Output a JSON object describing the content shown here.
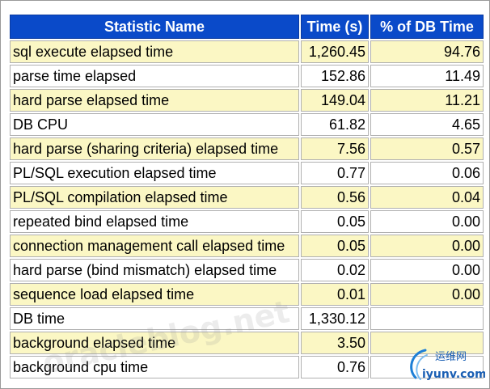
{
  "table": {
    "headers": [
      "Statistic Name",
      "Time (s)",
      "% of DB Time"
    ],
    "rows": [
      {
        "name": "sql execute elapsed time",
        "time": "1,260.45",
        "pct": "94.76"
      },
      {
        "name": "parse time elapsed",
        "time": "152.86",
        "pct": "11.49"
      },
      {
        "name": "hard parse elapsed time",
        "time": "149.04",
        "pct": "11.21"
      },
      {
        "name": "DB CPU",
        "time": "61.82",
        "pct": "4.65"
      },
      {
        "name": "hard parse (sharing criteria) elapsed time",
        "time": "7.56",
        "pct": "0.57"
      },
      {
        "name": "PL/SQL execution elapsed time",
        "time": "0.77",
        "pct": "0.06"
      },
      {
        "name": "PL/SQL compilation elapsed time",
        "time": "0.56",
        "pct": "0.04"
      },
      {
        "name": "repeated bind elapsed time",
        "time": "0.05",
        "pct": "0.00"
      },
      {
        "name": "connection management call elapsed time",
        "time": "0.05",
        "pct": "0.00"
      },
      {
        "name": "hard parse (bind mismatch) elapsed time",
        "time": "0.02",
        "pct": "0.00"
      },
      {
        "name": "sequence load elapsed time",
        "time": "0.01",
        "pct": "0.00"
      },
      {
        "name": "DB time",
        "time": "1,330.12",
        "pct": ""
      },
      {
        "name": "background elapsed time",
        "time": "3.50",
        "pct": ""
      },
      {
        "name": "background cpu time",
        "time": "0.76",
        "pct": ""
      }
    ]
  },
  "watermarks": {
    "middle": "oracleblog.net",
    "logo_cn": "运维网",
    "logo_url": "iyunv.com"
  },
  "colors": {
    "header_bg": "#0a4ac9",
    "row_highlight": "#fbf7c4",
    "row_plain": "#ffffff"
  }
}
